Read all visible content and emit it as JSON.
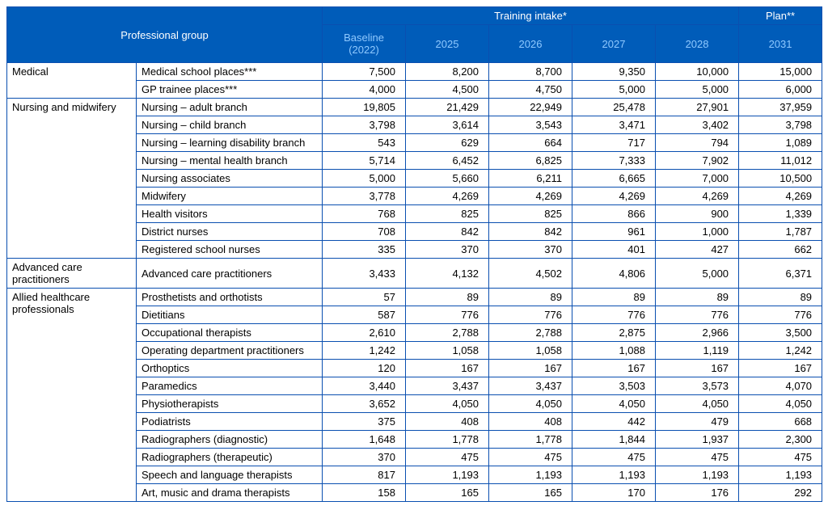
{
  "headers": {
    "group": "Professional group",
    "intake": "Training intake*",
    "plan": "Plan**",
    "years": [
      "Baseline (2022)",
      "2025",
      "2026",
      "2027",
      "2028",
      "2031"
    ]
  },
  "sections": [
    {
      "category": "Medical",
      "rows": [
        {
          "label": "Medical school places***",
          "vals": [
            "7,500",
            "8,200",
            "8,700",
            "9,350",
            "10,000",
            "15,000"
          ]
        },
        {
          "label": "GP trainee places***",
          "vals": [
            "4,000",
            "4,500",
            "4,750",
            "5,000",
            "5,000",
            "6,000"
          ]
        }
      ]
    },
    {
      "category": "Nursing and midwifery",
      "rows": [
        {
          "label": "Nursing – adult branch",
          "vals": [
            "19,805",
            "21,429",
            "22,949",
            "25,478",
            "27,901",
            "37,959"
          ]
        },
        {
          "label": "Nursing – child branch",
          "vals": [
            "3,798",
            "3,614",
            "3,543",
            "3,471",
            "3,402",
            "3,798"
          ]
        },
        {
          "label": "Nursing – learning disability branch",
          "vals": [
            "543",
            "629",
            "664",
            "717",
            "794",
            "1,089"
          ]
        },
        {
          "label": "Nursing – mental health branch",
          "vals": [
            "5,714",
            "6,452",
            "6,825",
            "7,333",
            "7,902",
            "11,012"
          ]
        },
        {
          "label": "Nursing associates",
          "vals": [
            "5,000",
            "5,660",
            "6,211",
            "6,665",
            "7,000",
            "10,500"
          ]
        },
        {
          "label": "Midwifery",
          "vals": [
            "3,778",
            "4,269",
            "4,269",
            "4,269",
            "4,269",
            "4,269"
          ]
        },
        {
          "label": "Health visitors",
          "vals": [
            "768",
            "825",
            "825",
            "866",
            "900",
            "1,339"
          ]
        },
        {
          "label": "District nurses",
          "vals": [
            "708",
            "842",
            "842",
            "961",
            "1,000",
            "1,787"
          ]
        },
        {
          "label": "Registered school nurses",
          "vals": [
            "335",
            "370",
            "370",
            "401",
            "427",
            "662"
          ]
        }
      ]
    },
    {
      "category": "Advanced care practitioners",
      "rows": [
        {
          "label": "Advanced care practitioners",
          "vals": [
            "3,433",
            "4,132",
            "4,502",
            "4,806",
            "5,000",
            "6,371"
          ]
        }
      ]
    },
    {
      "category": "Allied healthcare professionals",
      "rows": [
        {
          "label": "Prosthetists and orthotists",
          "vals": [
            "57",
            "89",
            "89",
            "89",
            "89",
            "89"
          ]
        },
        {
          "label": "Dietitians",
          "vals": [
            "587",
            "776",
            "776",
            "776",
            "776",
            "776"
          ]
        },
        {
          "label": "Occupational therapists",
          "vals": [
            "2,610",
            "2,788",
            "2,788",
            "2,875",
            "2,966",
            "3,500"
          ]
        },
        {
          "label": "Operating department practitioners",
          "vals": [
            "1,242",
            "1,058",
            "1,058",
            "1,088",
            "1,119",
            "1,242"
          ]
        },
        {
          "label": "Orthoptics",
          "vals": [
            "120",
            "167",
            "167",
            "167",
            "167",
            "167"
          ]
        },
        {
          "label": "Paramedics",
          "vals": [
            "3,440",
            "3,437",
            "3,437",
            "3,503",
            "3,573",
            "4,070"
          ]
        },
        {
          "label": "Physiotherapists",
          "vals": [
            "3,652",
            "4,050",
            "4,050",
            "4,050",
            "4,050",
            "4,050"
          ]
        },
        {
          "label": "Podiatrists",
          "vals": [
            "375",
            "408",
            "408",
            "442",
            "479",
            "668"
          ]
        },
        {
          "label": "Radiographers (diagnostic)",
          "vals": [
            "1,648",
            "1,778",
            "1,778",
            "1,844",
            "1,937",
            "2,300"
          ]
        },
        {
          "label": "Radiographers (therapeutic)",
          "vals": [
            "370",
            "475",
            "475",
            "475",
            "475",
            "475"
          ]
        },
        {
          "label": "Speech and language therapists",
          "vals": [
            "817",
            "1,193",
            "1,193",
            "1,193",
            "1,193",
            "1,193"
          ]
        },
        {
          "label": "Art, music and drama therapists",
          "vals": [
            "158",
            "165",
            "165",
            "170",
            "176",
            "292"
          ]
        }
      ]
    }
  ]
}
